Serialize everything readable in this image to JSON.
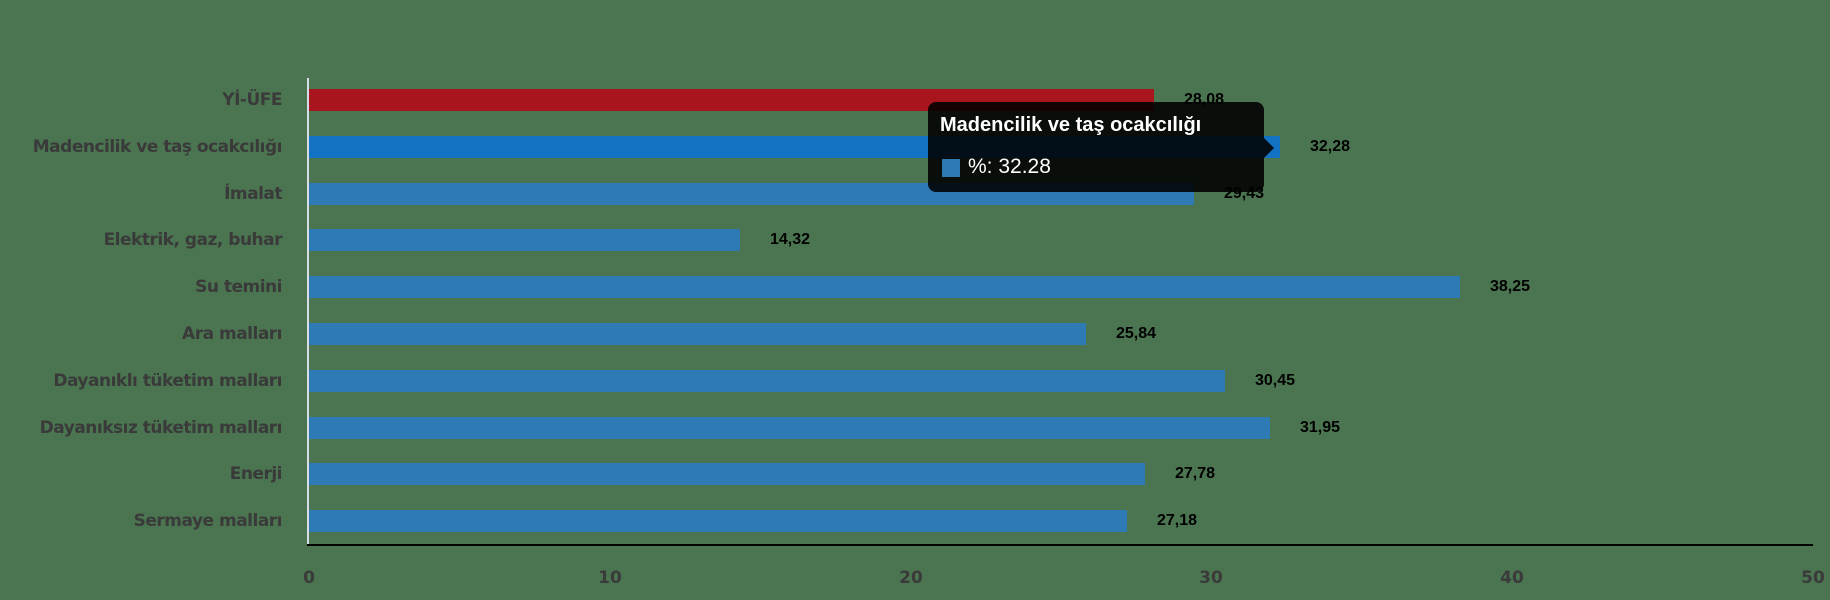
{
  "chart_data": {
    "type": "bar",
    "orientation": "horizontal",
    "title": "",
    "xlabel": "",
    "ylabel": "",
    "xlim": [
      0,
      50
    ],
    "x_ticks": [
      "0",
      "10",
      "20",
      "30",
      "40",
      "50"
    ],
    "grid": false,
    "legend": "none",
    "categories": [
      "Yİ-ÜFE",
      "Madencilik ve taş ocakcılığı",
      "İmalat",
      "Elektrik, gaz, buhar",
      "Su temini",
      "Ara malları",
      "Dayanıklı tüketim malları",
      "Dayanıksız tüketim malları",
      "Enerji",
      "Sermaye malları"
    ],
    "values": [
      28.08,
      32.28,
      29.43,
      14.32,
      38.25,
      25.84,
      30.45,
      31.95,
      27.78,
      27.18
    ],
    "value_labels": [
      "28,08",
      "32,28",
      "29,43",
      "14,32",
      "38,25",
      "25,84",
      "30,45",
      "31,95",
      "27,78",
      "27,18"
    ],
    "bar_colors": [
      "#a8151c",
      "#1472c4",
      "#2e7ab5",
      "#2e7ab5",
      "#2e7ab5",
      "#2e7ab5",
      "#2e7ab5",
      "#2e7ab5",
      "#2e7ab5",
      "#2e7ab5"
    ],
    "series": [
      {
        "name": "%",
        "values": [
          28.08,
          32.28,
          29.43,
          14.32,
          38.25,
          25.84,
          30.45,
          31.95,
          27.78,
          27.18
        ]
      }
    ]
  },
  "colors": {
    "background": "#4a7550",
    "highlight": "#a8151c",
    "hover_bar": "#1472c4",
    "bar": "#2e7ab5",
    "axis": "#000000",
    "y_axis": "#d6dde4",
    "label_text": "#3a3a3a"
  },
  "tooltip": {
    "title": "Madencilik ve taş ocakcılığı",
    "value_text": "%: 32.28",
    "swatch_color": "#2e7ab5"
  }
}
